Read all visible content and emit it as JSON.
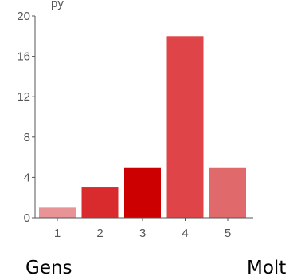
{
  "chart_data": {
    "type": "bar",
    "categories": [
      "1",
      "2",
      "3",
      "4",
      "5"
    ],
    "values": [
      1,
      3,
      5,
      18,
      5
    ],
    "colors": [
      "#e89497",
      "#d92a2e",
      "#cc0000",
      "#de4448",
      "#e0696c"
    ],
    "ylim": [
      0,
      20
    ],
    "yticks": [
      0,
      4,
      8,
      12,
      16,
      20
    ],
    "title": "",
    "xlabel": "",
    "ylabel": "",
    "grid": false,
    "legend": "none"
  },
  "captions": {
    "left": "Gens",
    "right": "Molt"
  }
}
